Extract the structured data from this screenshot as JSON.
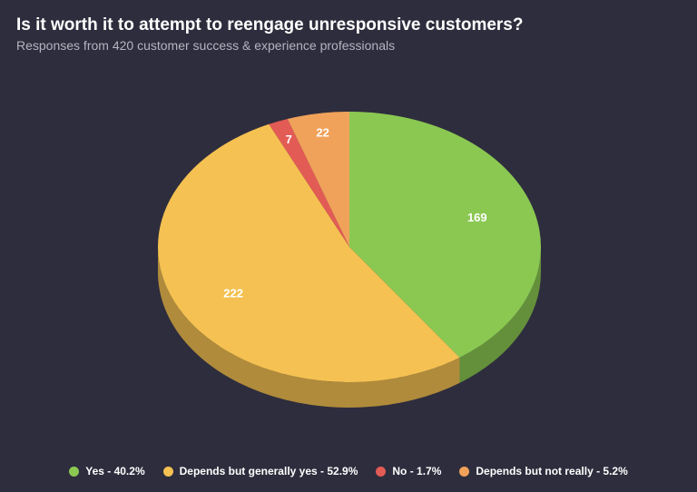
{
  "chart_data": {
    "type": "pie",
    "title": "Is it worth it to attempt to reengage unresponsive customers?",
    "subtitle": "Responses from 420 customer success & experience professionals",
    "categories": [
      "Yes - 40.2%",
      "Depends but generally yes - 52.9%",
      "No - 1.7%",
      "Depends but not really - 5.2%"
    ],
    "values": [
      169,
      222,
      7,
      22
    ],
    "colors": [
      "#8bc852",
      "#f5c152",
      "#e35b55",
      "#f0a25a"
    ],
    "legend": "bottom"
  }
}
